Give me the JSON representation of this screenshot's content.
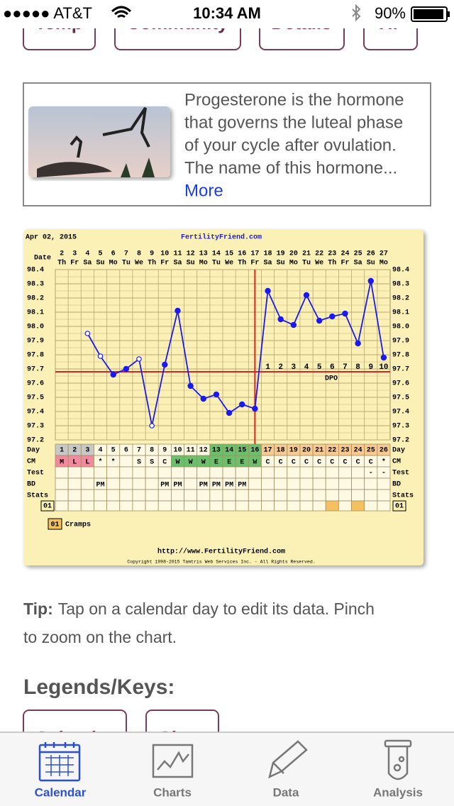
{
  "status_bar": {
    "carrier": "●●●●● AT&T",
    "time": "10:34 AM",
    "battery": "90%"
  },
  "top_buttons": [
    "Temp",
    "Community",
    "Details",
    "VIP"
  ],
  "article": {
    "text_lines": [
      "Progesterone is the hormone",
      "that governs the luteal phase",
      "of your cycle after ovulation.",
      "The name of this hormone..."
    ],
    "link": "More"
  },
  "chart_data": {
    "type": "line",
    "date_label": "Apr 02, 2015",
    "site": "FertilityFriend.com",
    "url": "http://www.FertilityFriend.com",
    "copyright": "Copyright 1998-2015 Tamtris Web Services Inc. - All Rights Reserved.",
    "row_labels": {
      "date": "Date",
      "day": "Day",
      "cm": "CM",
      "test": "Test",
      "bd": "BD",
      "stats": "Stats"
    },
    "stats_key": "01",
    "legend": {
      "key": "01",
      "name": "Cramps"
    },
    "dpo_label": "DPO",
    "categories": [
      "2",
      "3",
      "4",
      "5",
      "6",
      "7",
      "8",
      "9",
      "10",
      "11",
      "12",
      "13",
      "14",
      "15",
      "16",
      "17",
      "18",
      "19",
      "20",
      "21",
      "22",
      "23",
      "24",
      "25",
      "26",
      "27"
    ],
    "weekdays": [
      "Th",
      "Fr",
      "Sa",
      "Su",
      "Mo",
      "Tu",
      "We",
      "Th",
      "Fr",
      "Sa",
      "Su",
      "Mo",
      "Tu",
      "We",
      "Th",
      "Fr",
      "Sa",
      "Su",
      "Mo",
      "Tu",
      "We",
      "Th",
      "Fr",
      "Sa",
      "Su",
      "Mo"
    ],
    "days": [
      "1",
      "2",
      "3",
      "4",
      "5",
      "6",
      "7",
      "8",
      "9",
      "10",
      "11",
      "12",
      "13",
      "14",
      "15",
      "16",
      "17",
      "18",
      "19",
      "20",
      "21",
      "22",
      "23",
      "24",
      "25",
      "26"
    ],
    "values": [
      null,
      null,
      97.95,
      97.79,
      97.66,
      97.7,
      97.77,
      97.3,
      97.73,
      98.11,
      97.58,
      97.49,
      97.52,
      97.39,
      97.45,
      97.42,
      98.25,
      98.05,
      98.01,
      98.22,
      98.04,
      98.07,
      98.09,
      97.88,
      98.32,
      97.78
    ],
    "open_markers": [
      false,
      false,
      true,
      true,
      false,
      false,
      true,
      true,
      false,
      false,
      false,
      false,
      false,
      false,
      false,
      false,
      false,
      false,
      false,
      false,
      false,
      false,
      false,
      false,
      false,
      false
    ],
    "color": "#1a1aee",
    "ylim": [
      97.2,
      98.4
    ],
    "yticks": [
      97.2,
      97.3,
      97.4,
      97.5,
      97.6,
      97.7,
      97.8,
      97.9,
      {
        "value": 98.0,
        "label": "98.0"
      },
      98.1,
      98.2,
      98.3,
      98.4
    ],
    "grid": true,
    "coverline": 97.68,
    "coverline_color": "#dd2222",
    "ovulation_index": 15,
    "dpo": [
      null,
      null,
      null,
      null,
      null,
      null,
      null,
      null,
      null,
      null,
      null,
      null,
      null,
      null,
      null,
      null,
      "1",
      "2",
      "3",
      "4",
      "5",
      "6",
      "7",
      "8",
      "9",
      "10"
    ],
    "cm": [
      "M",
      "L",
      "L",
      "*",
      "*",
      null,
      "S",
      "S",
      "C",
      "W",
      "W",
      "W",
      "E",
      "E",
      "E",
      "W",
      "C",
      "C",
      "C",
      "C",
      "C",
      "C",
      "C",
      "C",
      "C",
      "*"
    ],
    "test": [
      null,
      null,
      null,
      null,
      null,
      null,
      null,
      null,
      null,
      null,
      null,
      null,
      null,
      null,
      null,
      null,
      null,
      null,
      null,
      null,
      null,
      null,
      null,
      null,
      "-",
      "-"
    ],
    "bd": [
      null,
      null,
      null,
      "PM",
      null,
      null,
      null,
      null,
      "PM",
      "PM",
      null,
      "PM",
      "PM",
      "PM",
      "PM",
      null,
      null,
      null,
      null,
      null,
      null,
      null,
      null,
      null,
      null,
      null
    ],
    "cramps": [
      false,
      false,
      false,
      false,
      false,
      false,
      false,
      false,
      false,
      false,
      false,
      false,
      false,
      false,
      false,
      false,
      false,
      false,
      false,
      false,
      false,
      true,
      false,
      true,
      false,
      false
    ],
    "cramps_color": "#f5c060",
    "day_colors": [
      "#c8c8c8",
      "#c8c8c8",
      "#c8c8c8",
      "#fff9e4",
      "#fff9e4",
      "#fff9e4",
      "#fff9e4",
      "#fff9e4",
      "#fff9e4",
      "#fff9e4",
      "#fff9e4",
      "#fff9e4",
      "#6cc06c",
      "#6cc06c",
      "#6cc06c",
      "#6cc06c",
      "#f8c990",
      "#f8c990",
      "#f8c990",
      "#f8c990",
      "#f8c990",
      "#f8c990",
      "#f8c990",
      "#f8c990",
      "#f8c990",
      "#f8c990"
    ],
    "cm_colors": [
      "#f2899e",
      "#f2899e",
      "#f2899e",
      "#fff9e4",
      "#fff9e4",
      "#fff9e4",
      "#fff9e4",
      "#fff9e4",
      "#fff9e4",
      "#6cc06c",
      "#6cc06c",
      "#6cc06c",
      "#6cc06c",
      "#6cc06c",
      "#6cc06c",
      "#6cc06c",
      "#fff9e4",
      "#fff9e4",
      "#fff9e4",
      "#fff9e4",
      "#fff9e4",
      "#fff9e4",
      "#fff9e4",
      "#fff9e4",
      "#fff9e4",
      "#fff9e4"
    ]
  },
  "tip": {
    "label": "Tip:",
    "line1": "Tap on a calendar day to edit its data. Pinch",
    "line2": "to zoom on the chart."
  },
  "legends_title": "Legends/Keys:",
  "legend_buttons": [
    "Calendar",
    "Chart"
  ],
  "tabs": [
    "Calendar",
    "Charts",
    "Data",
    "Analysis"
  ]
}
